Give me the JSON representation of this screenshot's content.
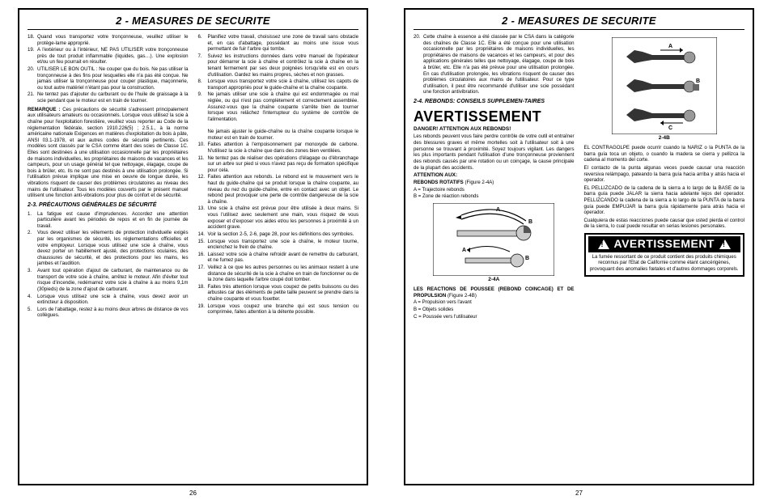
{
  "header_title": "2 - MEASURES DE SECURITE",
  "page_left_num_start": 18,
  "page_left_num": "26",
  "page_right_num": "27",
  "left_col1_items": [
    "Quand vous transportez votre tronçonneuse, veuillez utiliser le protège-lame approprié.",
    "A l'extérieur ou à l'intérieur, NE PAS UTILISER votre tronçonneuse près de tout produit inflammable (liquides, gas…). Une explosion et/ou un feu pourrait en résulter.",
    "UTILISER LE BON OUTIL : Ne couper que du bois. Ne pas utiliser la tronçonneuse à des fins pour lesquelles elle n'a pas été conçue. Ne jamais utiliser la tronçonneuse pour couper plastique, maçonnerie, ou tout autre matériel n'étant pas pour la construction.",
    "Ne tentez pas d'ajouter du carburant ou de l'huile de graissage à la scie pendant que le moteur est en train de tourner."
  ],
  "left_remark_label": "REMARQUE :",
  "left_remark_text": "Ces précautions de sécurité s'adressent principalement aux utilisateurs amateurs ou occasionnels. Lorsque vous utilisez la scie à chaîne pour l'exploitation forestière, veuillez vous reporter au Code de la réglementation fédérale, section 1910.226(5) ; 2.5.1., à la norme américaine nationale Exigences en matières d'exploitation du bois à pâte, ANSI 03.1-1978, et aux autres codes de sécurité pertinents. Ces modèles sont classés par le CSA comme étant des scies de Classe 1C. Elles sont destinées à une utilisation occasionnelle par les propriétaires de maisons individuelles, les propriétaires de maisons de vacances et les campeurs, pour un usage général tel que nettoyage, élagage, coupe de bois à brûler, etc. Ils ne sont pas destinés à une utilisation prolongée. Si l'utilisation prévue implique une mise en oeuvre de longue durée, les vibrations risquent de causer des problèmes circulatoires au niveau des mains de l'utilisateur. Tous les modèles couverts par le présent manuel utilisent une fonction anti-vibrations pour plus de confort et de sécurité.",
  "left_sec23_title": "2-3.  PRÉCAUTIONS GÉNÉRALES DE SÉCURITÉ",
  "left_sec23_items": [
    "La fatigue est cause d'imprudences. Accordez une attention particulière avant les périodes de repos et en fin de journée de travail.",
    "Vous devez utiliser les vêtements de protection individuelle exigés par les organismes de sécurité, les réglementations officielles et votre employeur. Lorsque vous utilisez une scie à chaîne, vous devez porter un habillement ajusté, des protections oculaires, des chaussures de sécurité, et des protections pour les mains, les jambes et l'audition.",
    "Avant tout opération d'ajout de carburant, de maintenance ou de transport de votre scie à chaîne, arrêtez le moteur. Afin d'éviter tout risque d'incendie, redémarrez votre scie à chaîne à au moins 9,1m (30pieds) de la zone d'ajout de carburant.",
    "Lorsque vous utilisez une scie à chaîne, vous devez avoir un extincteur à disposition.",
    "Lors de l'abattage, restez à au moins deux arbres de distance de vos collègues."
  ],
  "left_col2_start": 6,
  "left_col2_items": [
    "Planifiez votre travail, choisissez une zone de travail sans obstacle et, en cas d'abattage, possédant au moins une issue vous permettant de fuir l'arbre qui tombe.",
    "Suivez les instructions données dans votre manuel de l'opérateur pour démarrer la scie à chaîne et contrôlez la scie à chaîne en la tenant fermement par ses deux poignées lorsqu'elle est en cours d'utilisation. Gardez les mains propres, sèches et non grasses.",
    "Lorsque vous transportez votre scie à chaîne, utilisez les capots de transport appropriés pour le guide-chaîne et la chaîne coupante.",
    "Ne jamais utiliser une scie à chaîne qui est endommagée ou mal réglée, ou qui n'est pas complètement et correctement assemblée. Assurez-vous que la chaîne coupante s'arrête bien de tourner lorsque vous relâchez l'interrupteur du système de contrôle de l'alimentation.\nNe jamais ajuster le guide-chaîne ou la chaîne coupante lorsque le moteur est en train de tourner.",
    "Faites attention à l'empoisonnement par monoxyde de carbone. N'utilisez la scie à chaîne que dans des zones bien ventilées.",
    "Ne tentez pas de réaliser des opérations d'élagage ou d'ébranchage sur un arbre sur pied si vous n'avez pas reçu de formation spécifique pour cela.",
    "Faites attention aux rebonds. Le rebond est le mouvement vers le haut du guide-chaîne qui se produit lorsque la chaîne coupante, au niveau du nez du guide-chaîne, entre en contact avec un objet. Le rebond peut provoquer une perte de contrôle dangereuse de la scie à chaîne.",
    "Une scie à chaîne est prévue pour être utilisée à deux mains. Si vous l'utilisez avec seulement une main, vous risquez de vous exposer et d'exposer vos aides et/ou les personnes à proximité à un accident grave.",
    "Voir la section 2-5, 2-6, page 28, pour les définitions des symboles.",
    "Lorsque vous transportez une scie à chaîne, le moteur tourne, enclenchez le frein de chaîne.",
    "Laissez votre scie à chaîne refroidir avant de remettre du carburant, et ne fumez pas.",
    "Veillez à ce que les autres personnes ou les animaux restent à une distance de sécurité de la scie à chaîne en train de fonctionner ou de la zone dans laquelle l'arbre coupé doit tomber.",
    "Faites très attention lorsque vous coupez de petits buissons ou des arbustes car des éléments de petite taille peuvent se prendre dans la chaîne coupante et vous fouetter.",
    "Lorsque vous coupez une branche qui est sous tension ou comprimée, faites attention à la détente possible."
  ],
  "right_item20": "Cette chaîne à essence a été classée par le CSA dans la catégorie des chaînes de Classe 1C. Elle a été conçue pour une utilisation occasionnelle par les propriétaires de maisons individuelles, les propriétaires de maisons de vacances et les campeurs, et pour des applications générales telles que nettoyage, élagage, coupe de bois à brûler, etc. Elle n'a pas été prévue pour une utilisation prolongée. En cas d'utilisation prolongée, les vibrations risquent de causer des problèmes circulatoires aux mains de l'utilisateur. Pour ce type d'utilisation, il peut être recommandé d'utiliser une scie possédant une fonction antivibration.",
  "right_sec24_title": "2-4.  REBONDS: CONSEILS SUPPLEMEN-TAIRES",
  "right_avert": "AVERTISSEMENT",
  "right_danger": "DANGER! ATTENTION AUX REBONDS!",
  "right_danger_text": "Les rebonds peuvent vous faire perdre contrôle de votre outil et entraîner des blessures graves et même mortelles soit à l'utilisateur soit à une personne se trouvant à proximité. Soyez toujours vigilant. Les dangers les plus importants pendant l'utilisation d'une tronçonneuse proviennent des rebonds causés par une rotation ou un coinçage, la cause principale de la plupart des accidents.",
  "right_attn_label": "ATTENTION AUX:",
  "right_rotatifs": "REBONDS ROTATIFS",
  "right_rotatifs_fig": "(Figure 2-4A)",
  "right_legendA": "A = Trajectoire rebonds",
  "right_legendB": "B = Zone de réaction rebonds",
  "fig2_4a_caption": "2-4A",
  "right_push_title": "LES REACTIONS DE POUSSEE (REBOND COINCAGE) ET DE PROPULSION",
  "right_push_fig": "(Figure 2-4B)",
  "right_push_A": "A = Propulsion vers l'avant",
  "right_push_B": "B = Objets solides",
  "right_push_C": "C = Poussée vers l'utilisateur",
  "fig2_4b_caption": "2-4B",
  "right_es_p1": "EL CONTRAGOLPE puede ocurrir cuando la NARIZ o la PUNTA de la barra guía toca un objeto, o cuando la madera se cierra y pellizca la cadena al momento del corte.",
  "right_es_p2": "El contacto de la punta algunas veces puede causar una reacción reversiva relámpago, pateando la barra guía hacia arriba y atrás hacia el operador.",
  "right_es_p3": "EL PELLIZCADO de la cadena de la sierra a lo largo de la BASE de la barra guía puede JALAR la sierra hacia adelante lejos del operador. PELLIZCANDO la cadena de la sierra a lo largo de la PUNTA de la barra guía puede EMPUJAR la barra guía rápidamente para atrás hacia el operador.",
  "right_es_p4": "Cualquiera de estas reacciones puede causar que usted pierda el control de la sierra, lo cual puede resultar en serias lesiones personales.",
  "warn_title": "AVERTISSEMENT",
  "warn_body": "La fumée ressortant de ce produit contient des produits chimiques reconnus par l'Etat de Californie comme étant cancérigènes, provoquant des anomalies fœtales et d'autres dommages corporels."
}
